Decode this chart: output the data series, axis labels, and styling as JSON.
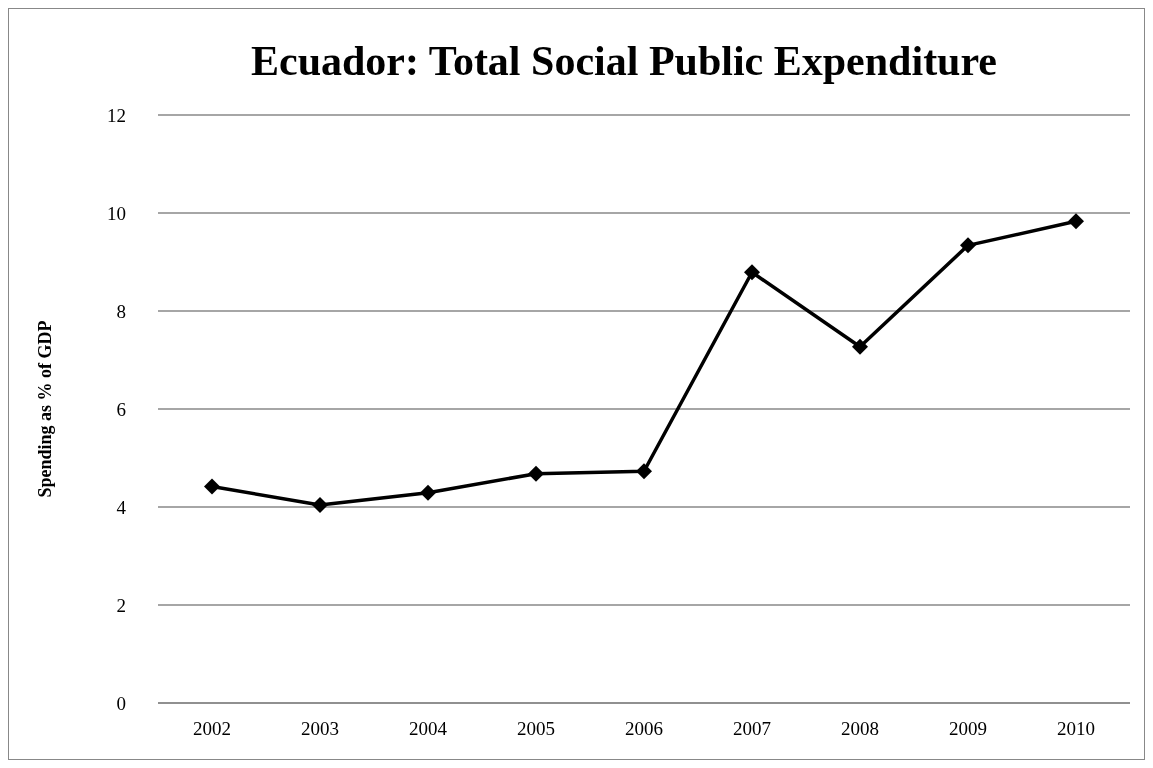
{
  "chart_data": {
    "type": "line",
    "title": "Ecuador: Total Social Public Expenditure",
    "ylabel": "Spending as % of GDP",
    "categories": [
      "2002",
      "2003",
      "2004",
      "2005",
      "2006",
      "2007",
      "2008",
      "2009",
      "2010"
    ],
    "series": [
      {
        "color": "#000000",
        "values": [
          4.42,
          4.04,
          4.29,
          4.68,
          4.73,
          8.79,
          7.27,
          9.34,
          9.83
        ]
      }
    ],
    "ylim": [
      0,
      12
    ],
    "yticks": [
      0,
      2,
      4,
      6,
      8,
      10,
      12
    ],
    "grid": "y",
    "marker": "diamond",
    "line_style": "solid"
  }
}
